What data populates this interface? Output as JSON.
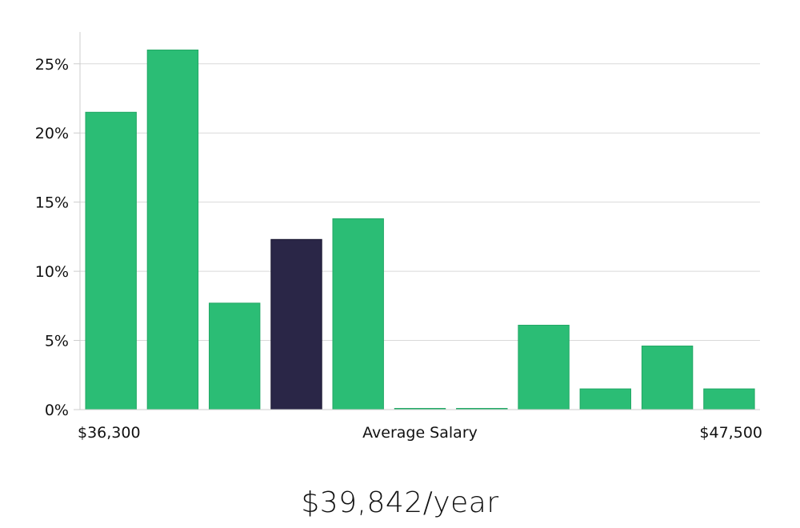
{
  "headline": "$39,842/year",
  "chart_data": {
    "type": "bar",
    "title": "",
    "xlabel": "Average Salary",
    "ylabel": "",
    "x_min_label": "$36,300",
    "x_max_label": "$47,500",
    "ylim": [
      0,
      27.3
    ],
    "yticks": [
      0,
      5,
      10,
      15,
      20,
      25
    ],
    "ytick_labels": [
      "0%",
      "5%",
      "10%",
      "15%",
      "20%",
      "25%"
    ],
    "grid": true,
    "values": [
      21.5,
      26.0,
      7.7,
      12.3,
      13.8,
      0.05,
      0.05,
      6.1,
      1.5,
      4.6,
      1.5
    ],
    "highlight_index": 3,
    "colors": {
      "bar": "#2bbd75",
      "bar_edge": "#22a865",
      "highlight": "#2a2647",
      "highlight_edge": "#1a1730",
      "grid": "#d9d9d9",
      "axis": "#cccccc"
    }
  }
}
